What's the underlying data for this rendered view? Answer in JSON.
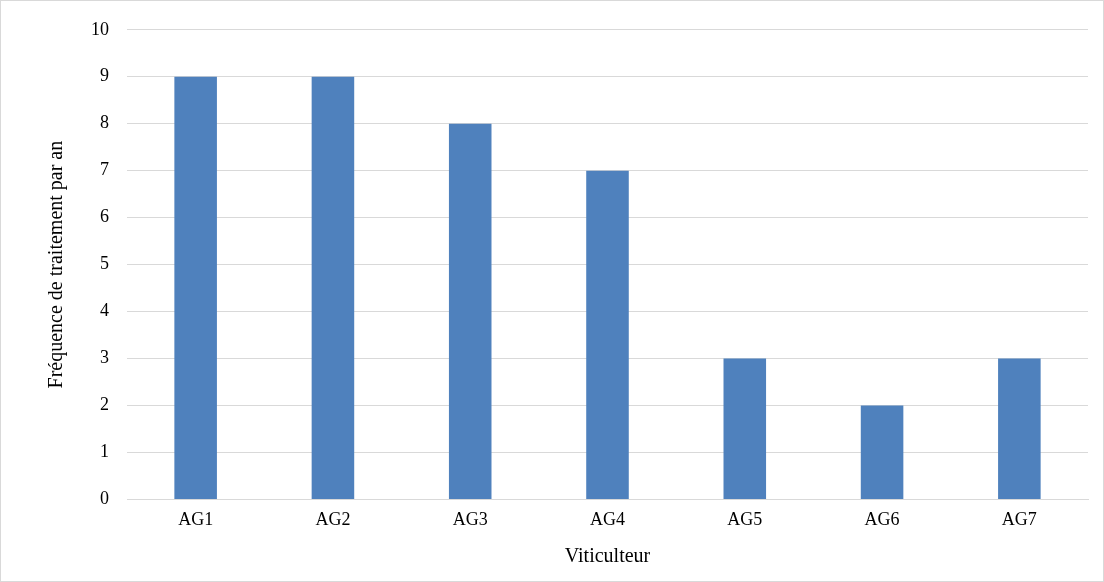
{
  "chart_data": {
    "type": "bar",
    "xlabel": "Viticulteur",
    "ylabel": "Fréquence de traitement par an",
    "categories": [
      "AG1",
      "AG2",
      "AG3",
      "AG4",
      "AG5",
      "AG6",
      "AG7"
    ],
    "values": [
      9,
      9,
      8,
      7,
      3,
      2,
      3
    ],
    "color": "#4f81bd",
    "ylim": [
      0,
      10
    ],
    "yticks": [
      0,
      1,
      2,
      3,
      4,
      5,
      6,
      7,
      8,
      9,
      10
    ],
    "grid": "y"
  }
}
